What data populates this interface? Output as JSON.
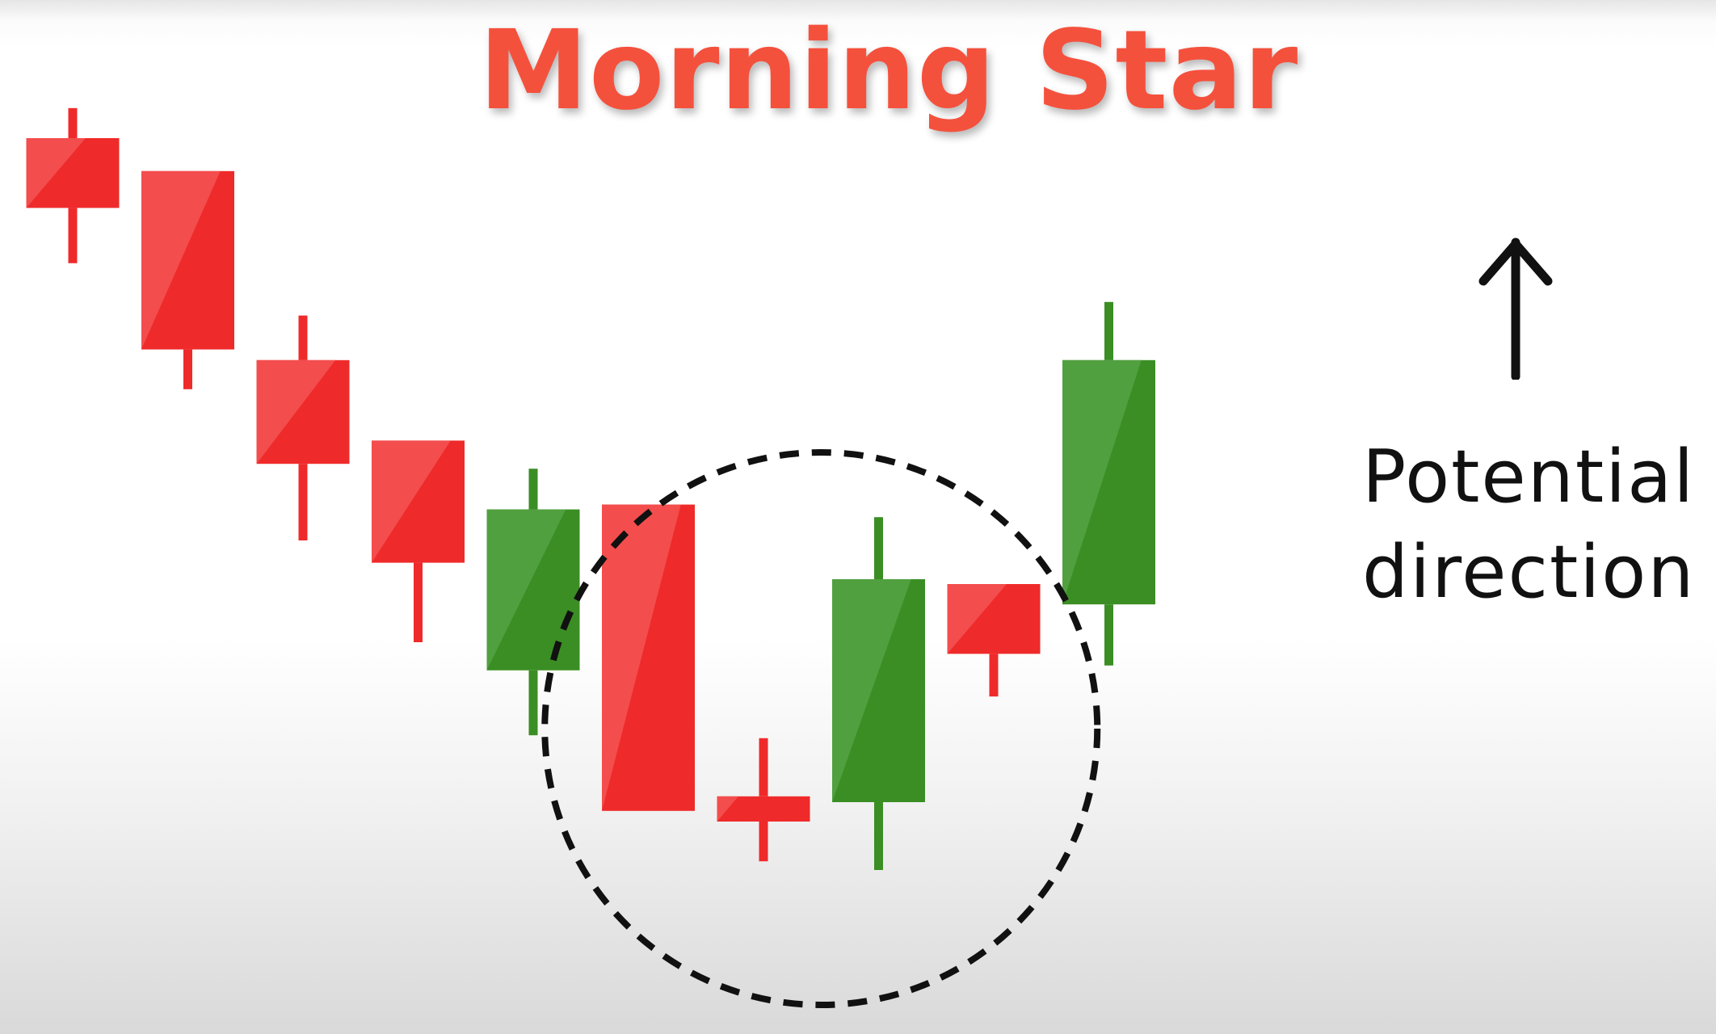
{
  "colors": {
    "bearish": "#ef2a2a",
    "bearish_highlight": "#f45a5a",
    "bullish": "#3b8e24",
    "bullish_highlight": "#5aa54a",
    "title": "#f4513d",
    "circle": "#111111",
    "arrow": "#111111"
  },
  "chart_data": {
    "type": "candlestick",
    "title": "Morning Star",
    "annotation_lines": [
      "Potential",
      "direction"
    ],
    "annotation_icon": "up-arrow-icon",
    "highlight": {
      "shape": "dashed-circle",
      "candles": [
        5,
        6,
        7,
        8
      ]
    },
    "candles": [
      {
        "index": 0,
        "direction": "bearish",
        "open": 89.5,
        "close": 82.3,
        "high": 92.6,
        "low": 76.6
      },
      {
        "index": 1,
        "direction": "bearish",
        "open": 86.1,
        "close": 67.7,
        "high": 86.1,
        "low": 63.6
      },
      {
        "index": 2,
        "direction": "bearish",
        "open": 66.6,
        "close": 55.9,
        "high": 71.2,
        "low": 48.0
      },
      {
        "index": 3,
        "direction": "bearish",
        "open": 58.3,
        "close": 45.7,
        "high": 58.3,
        "low": 37.5
      },
      {
        "index": 4,
        "direction": "bullish",
        "open": 34.6,
        "close": 51.2,
        "high": 55.4,
        "low": 27.9
      },
      {
        "index": 5,
        "direction": "bearish",
        "open": 51.7,
        "close": 20.1,
        "high": 51.7,
        "low": 20.1
      },
      {
        "index": 6,
        "direction": "bearish",
        "open": 21.6,
        "close": 19.0,
        "high": 27.6,
        "low": 14.9
      },
      {
        "index": 7,
        "direction": "bullish",
        "open": 21.0,
        "close": 44.0,
        "high": 50.4,
        "low": 14.0
      },
      {
        "index": 8,
        "direction": "bearish",
        "open": 43.5,
        "close": 36.3,
        "high": 43.5,
        "low": 31.9
      },
      {
        "index": 9,
        "direction": "bullish",
        "open": 41.4,
        "close": 66.6,
        "high": 72.6,
        "low": 35.1
      }
    ]
  }
}
